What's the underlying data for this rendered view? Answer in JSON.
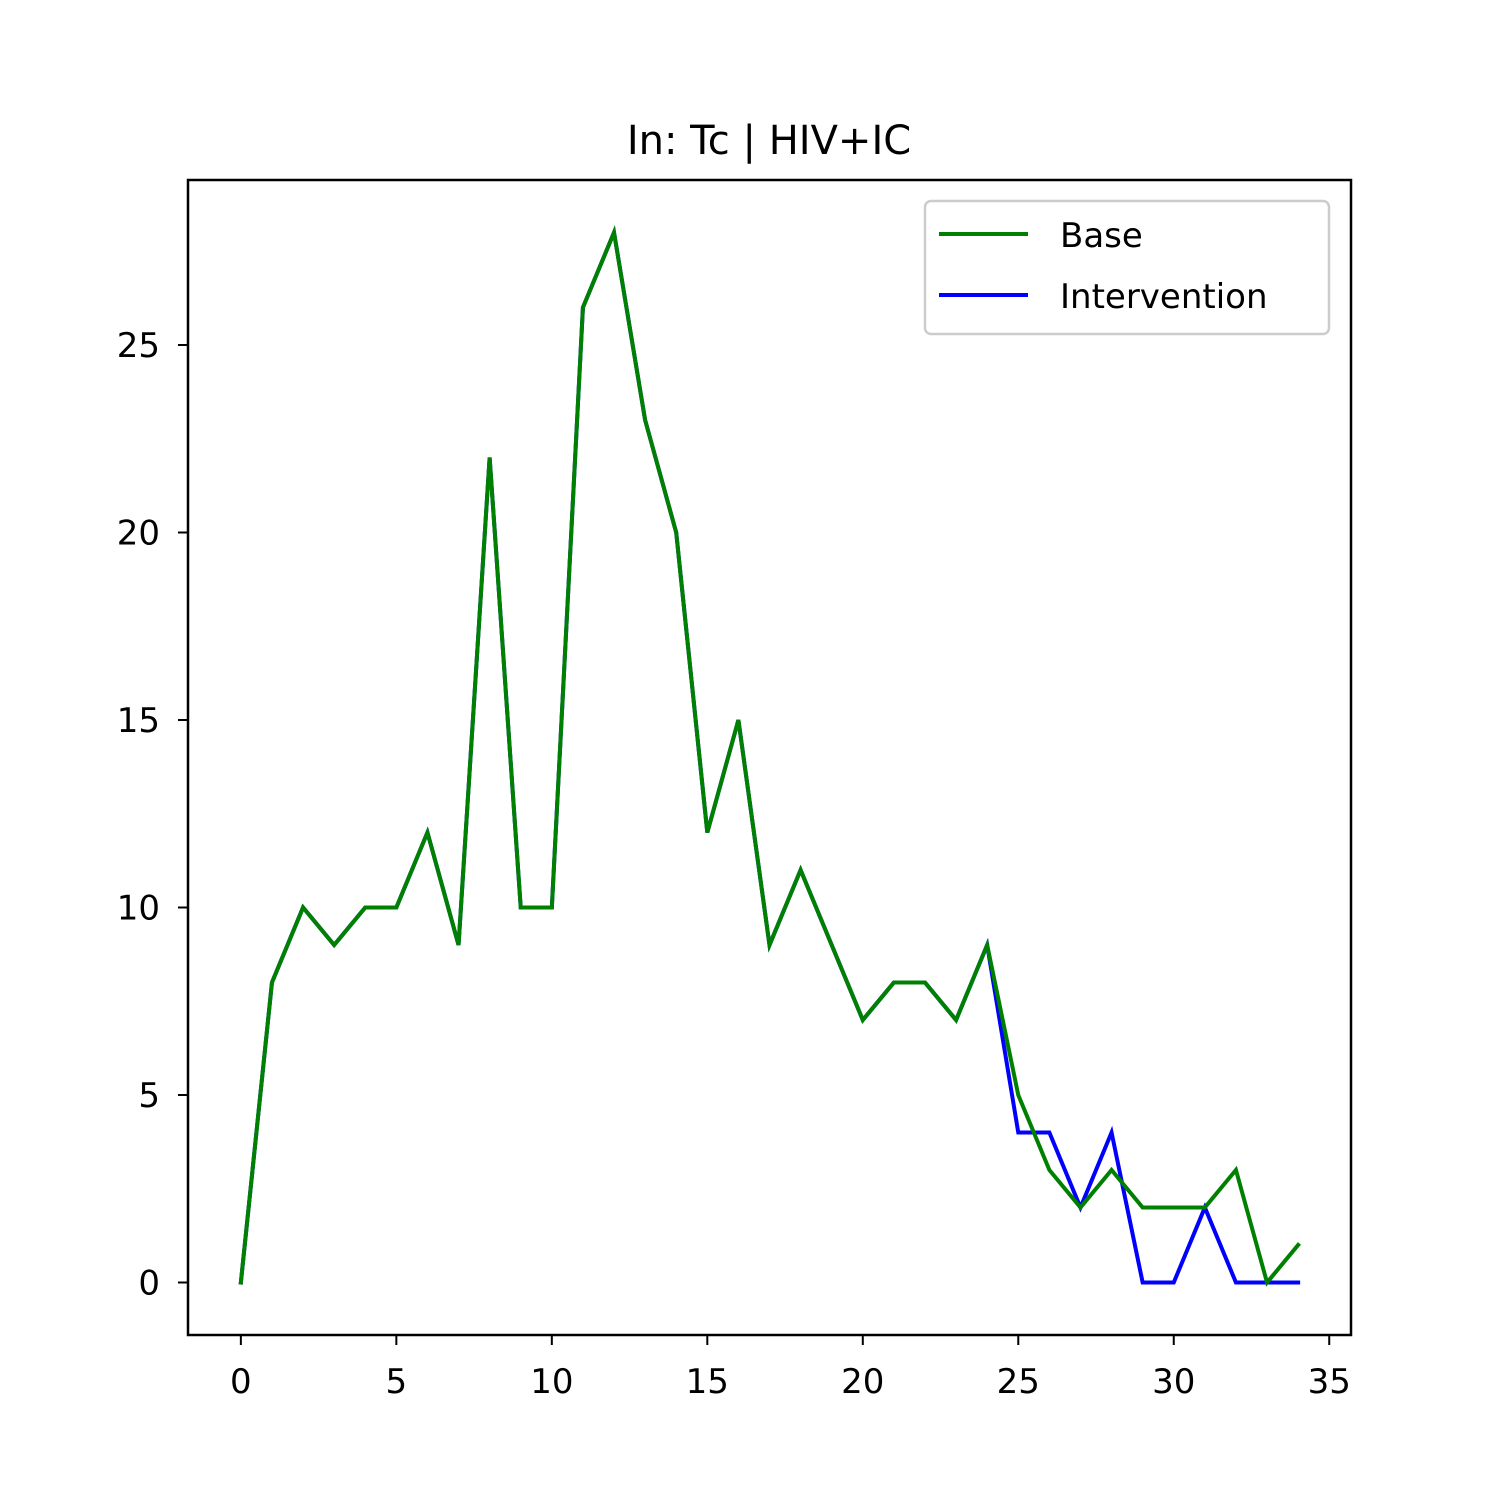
{
  "chart_data": {
    "type": "line",
    "title": "In: Tc | HIV+IC",
    "xlabel": "",
    "ylabel": "",
    "xlim": [
      -1.7,
      35.7
    ],
    "ylim": [
      -1.4,
      29.4
    ],
    "xticks": [
      0,
      5,
      10,
      15,
      20,
      25,
      30,
      35
    ],
    "yticks": [
      0,
      5,
      10,
      15,
      20,
      25
    ],
    "grid": false,
    "legend_position": "top-right",
    "x": [
      0,
      1,
      2,
      3,
      4,
      5,
      6,
      7,
      8,
      9,
      10,
      11,
      12,
      13,
      14,
      15,
      16,
      17,
      18,
      19,
      20,
      21,
      22,
      23,
      24,
      25,
      26,
      27,
      28,
      29,
      30,
      31,
      32,
      33,
      34
    ],
    "series": [
      {
        "name": "Intervention",
        "color": "#0000ff",
        "values": [
          0,
          8,
          10,
          9,
          10,
          10,
          12,
          9,
          22,
          10,
          10,
          26,
          28,
          23,
          20,
          12,
          15,
          9,
          11,
          9,
          7,
          8,
          8,
          7,
          9,
          4,
          4,
          2,
          4,
          0,
          0,
          2,
          0,
          0,
          0
        ]
      },
      {
        "name": "Base",
        "color": "#008000",
        "values": [
          0,
          8,
          10,
          9,
          10,
          10,
          12,
          9,
          22,
          10,
          10,
          26,
          28,
          23,
          20,
          12,
          15,
          9,
          11,
          9,
          7,
          8,
          8,
          7,
          9,
          5,
          3,
          2,
          3,
          2,
          2,
          2,
          3,
          0,
          1
        ]
      }
    ],
    "legend_order": [
      "Base",
      "Intervention"
    ]
  }
}
